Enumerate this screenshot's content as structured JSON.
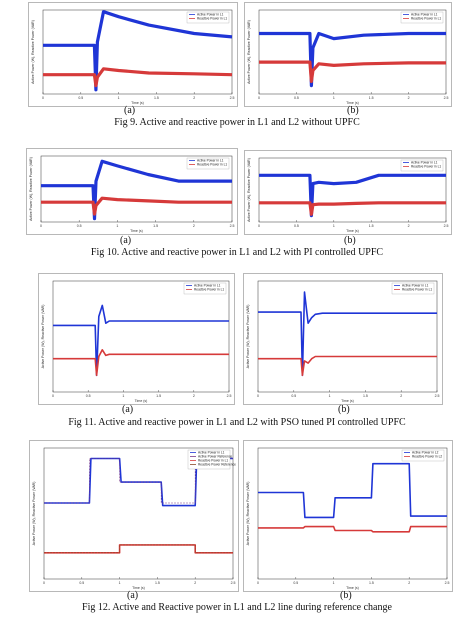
{
  "figures": [
    {
      "caption": "Fig 9. Active and reactive power in L1 and L2 without UPFC",
      "sub_a": "(a)",
      "sub_b": "(b)",
      "xlabel": "Time (s)",
      "ylabel": "Active Power (W), Reactive Power (VAR)",
      "legend": [
        "Active Power in L1",
        "Reactive Power in L1"
      ]
    },
    {
      "caption": "Fig 10. Active and reactive power in L1 and L2 with PI controlled UPFC",
      "sub_a": "(a)",
      "sub_b": "(b)",
      "xlabel": "Time (s)",
      "ylabel": "Active Power (W), Reactive Power (VAR)",
      "legend": [
        "Active Power in L1",
        "Reactive Power in L1"
      ]
    },
    {
      "caption": "Fig 11. Active and reactive power in L1 and L2 with PSO tuned PI controlled UPFC",
      "sub_a": "(a)",
      "sub_b": "(b)",
      "xlabel": "Time (s)",
      "ylabel": "Active Power (W), Reactive Power (VAR)",
      "legend": [
        "Active Power in L1",
        "Reactive Power in L1"
      ]
    },
    {
      "caption": "Fig 12. Active and Reactive power in L1 and L2 line during reference change",
      "sub_a": "(a)",
      "sub_b": "(b)",
      "xlabel": "Time (s)",
      "ylabel": "Active Power (W), Reactive Power (VAR)",
      "legend_a": [
        "Active Power in L1",
        "Active Power Reference",
        "Reactive Power in L1",
        "Reactive Power Reference"
      ],
      "legend_b": [
        "Active Power in L2",
        "Reactive Power in L2"
      ]
    }
  ],
  "colors": {
    "active": "#1f35d6",
    "reactive": "#d63a3a",
    "reference": "#7a3a8a",
    "axis": "#333333"
  },
  "chart_data": [
    {
      "type": "line",
      "title": "Fig 9 (a)",
      "x_range": [
        0,
        2.5
      ],
      "series": [
        {
          "name": "Active Power in L1",
          "x": [
            0,
            0.4,
            0.68,
            0.7,
            0.72,
            0.8,
            1.0,
            1.4,
            2.0,
            2.5
          ],
          "y": [
            0.58,
            0.58,
            0.58,
            0.05,
            0.62,
            0.98,
            0.92,
            0.82,
            0.72,
            0.68
          ]
        },
        {
          "name": "Reactive Power in L1",
          "x": [
            0,
            0.4,
            0.68,
            0.7,
            0.72,
            0.8,
            1.0,
            1.4,
            2.0,
            2.5
          ],
          "y": [
            0.23,
            0.23,
            0.23,
            0.1,
            0.2,
            0.3,
            0.28,
            0.25,
            0.24,
            0.23
          ]
        }
      ]
    },
    {
      "type": "line",
      "title": "Fig 9 (b)",
      "x_range": [
        0,
        2.5
      ],
      "series": [
        {
          "name": "Active Power in L2",
          "x": [
            0,
            0.4,
            0.68,
            0.7,
            0.72,
            0.8,
            1.0,
            1.4,
            2.0,
            2.5
          ],
          "y": [
            0.72,
            0.72,
            0.72,
            0.1,
            0.55,
            0.72,
            0.66,
            0.7,
            0.72,
            0.72
          ]
        },
        {
          "name": "Reactive Power in L2",
          "x": [
            0,
            0.4,
            0.68,
            0.7,
            0.72,
            0.8,
            1.0,
            1.4,
            2.0,
            2.5
          ],
          "y": [
            0.38,
            0.38,
            0.38,
            0.15,
            0.28,
            0.36,
            0.34,
            0.36,
            0.37,
            0.37
          ]
        }
      ]
    },
    {
      "type": "line",
      "title": "Fig 10 (a)",
      "x_range": [
        0,
        2.5
      ],
      "series": [
        {
          "name": "Active Power in L1",
          "x": [
            0,
            0.4,
            0.68,
            0.7,
            0.72,
            0.8,
            1.0,
            1.4,
            1.8,
            2.5
          ],
          "y": [
            0.55,
            0.55,
            0.55,
            0.05,
            0.62,
            0.92,
            0.85,
            0.72,
            0.62,
            0.62
          ]
        },
        {
          "name": "Reactive Power in L1",
          "x": [
            0,
            0.4,
            0.68,
            0.7,
            0.72,
            0.8,
            1.0,
            1.4,
            1.8,
            2.5
          ],
          "y": [
            0.3,
            0.3,
            0.3,
            0.12,
            0.25,
            0.36,
            0.34,
            0.32,
            0.3,
            0.3
          ]
        }
      ]
    },
    {
      "type": "line",
      "title": "Fig 10 (b)",
      "x_range": [
        0,
        2.5
      ],
      "series": [
        {
          "name": "Active Power in L2",
          "x": [
            0,
            0.4,
            0.68,
            0.7,
            0.72,
            0.8,
            1.0,
            1.3,
            1.6,
            2.5
          ],
          "y": [
            0.73,
            0.73,
            0.73,
            0.1,
            0.6,
            0.62,
            0.6,
            0.62,
            0.73,
            0.73
          ]
        },
        {
          "name": "Reactive Power in L2",
          "x": [
            0,
            0.4,
            0.68,
            0.7,
            0.72,
            0.8,
            1.0,
            1.3,
            1.6,
            2.5
          ],
          "y": [
            0.3,
            0.3,
            0.3,
            0.12,
            0.27,
            0.28,
            0.28,
            0.29,
            0.3,
            0.3
          ]
        }
      ]
    },
    {
      "type": "line",
      "title": "Fig 11 (a)",
      "x_range": [
        0,
        2.5
      ],
      "series": [
        {
          "name": "Active Power in L1",
          "x": [
            0,
            0.55,
            0.6,
            0.62,
            0.65,
            0.7,
            0.75,
            0.8,
            0.9,
            2.5
          ],
          "y": [
            0.6,
            0.6,
            0.6,
            0.15,
            0.68,
            0.78,
            0.62,
            0.64,
            0.64,
            0.64
          ]
        },
        {
          "name": "Reactive Power in L1",
          "x": [
            0,
            0.55,
            0.6,
            0.62,
            0.65,
            0.7,
            0.75,
            0.8,
            0.9,
            2.5
          ],
          "y": [
            0.3,
            0.3,
            0.3,
            0.15,
            0.32,
            0.38,
            0.33,
            0.34,
            0.34,
            0.34
          ]
        }
      ]
    },
    {
      "type": "line",
      "title": "Fig 11 (b)",
      "x_range": [
        0,
        2.5
      ],
      "series": [
        {
          "name": "Active Power in L2",
          "x": [
            0,
            0.55,
            0.6,
            0.62,
            0.65,
            0.7,
            0.75,
            0.8,
            0.9,
            2.5
          ],
          "y": [
            0.72,
            0.72,
            0.72,
            0.15,
            0.9,
            0.62,
            0.67,
            0.7,
            0.71,
            0.71
          ]
        },
        {
          "name": "Reactive Power in L2",
          "x": [
            0,
            0.55,
            0.6,
            0.62,
            0.65,
            0.7,
            0.75,
            0.8,
            0.9,
            2.5
          ],
          "y": [
            0.3,
            0.3,
            0.3,
            0.15,
            0.28,
            0.26,
            0.3,
            0.32,
            0.32,
            0.32
          ]
        }
      ]
    },
    {
      "type": "line",
      "title": "Fig 12 (a)",
      "x_range": [
        0,
        2.5
      ],
      "xticks": [
        0,
        0.5,
        1,
        1.5,
        2,
        2.5
      ],
      "series": [
        {
          "name": "Active Power in L1",
          "x": [
            0,
            0.6,
            0.62,
            1.0,
            1.02,
            1.55,
            1.57,
            2.0,
            2.02,
            2.5
          ],
          "y": [
            0.58,
            0.58,
            0.92,
            0.92,
            0.74,
            0.74,
            0.56,
            0.56,
            0.92,
            0.92
          ]
        },
        {
          "name": "Active Power Reference",
          "x": [
            0,
            0.6,
            0.6,
            1.0,
            1.0,
            1.55,
            1.55,
            2.0,
            2.0,
            2.5
          ],
          "y": [
            0.58,
            0.58,
            0.92,
            0.92,
            0.74,
            0.74,
            0.58,
            0.58,
            0.92,
            0.92
          ]
        },
        {
          "name": "Reactive Power in L1",
          "x": [
            0,
            1.0,
            1.0,
            2.0,
            2.0,
            2.5
          ],
          "y": [
            0.2,
            0.2,
            0.26,
            0.26,
            0.2,
            0.2
          ]
        },
        {
          "name": "Reactive Power Reference",
          "x": [
            0,
            1.0,
            1.0,
            2.0,
            2.0,
            2.5
          ],
          "y": [
            0.2,
            0.2,
            0.26,
            0.26,
            0.2,
            0.2
          ]
        }
      ]
    },
    {
      "type": "line",
      "title": "Fig 12 (b)",
      "x_range": [
        0,
        2.5
      ],
      "series": [
        {
          "name": "Active Power in L2",
          "x": [
            0,
            0.6,
            0.62,
            1.0,
            1.02,
            1.5,
            1.52,
            2.0,
            2.02,
            2.5
          ],
          "y": [
            0.66,
            0.66,
            0.47,
            0.47,
            0.62,
            0.62,
            0.88,
            0.88,
            0.48,
            0.48
          ]
        },
        {
          "name": "Reactive Power in L2",
          "x": [
            0,
            0.6,
            0.62,
            1.0,
            1.02,
            1.5,
            1.52,
            2.0,
            2.02,
            2.5
          ],
          "y": [
            0.39,
            0.39,
            0.4,
            0.4,
            0.37,
            0.37,
            0.36,
            0.36,
            0.4,
            0.4
          ]
        }
      ]
    }
  ]
}
